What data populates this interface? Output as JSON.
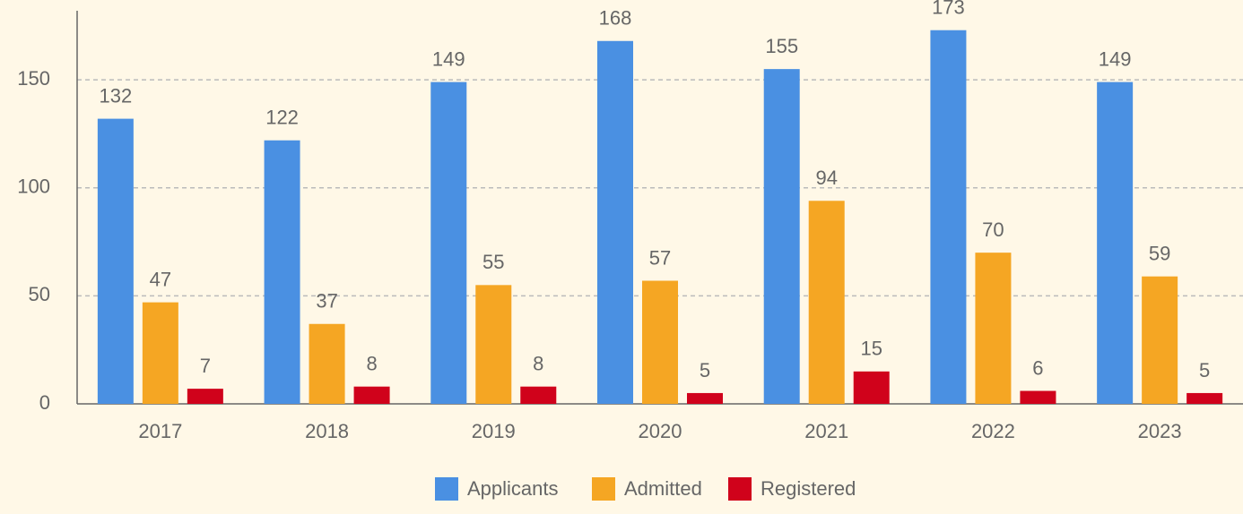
{
  "chart_data": {
    "type": "bar",
    "categories": [
      "2017",
      "2018",
      "2019",
      "2020",
      "2021",
      "2022",
      "2023"
    ],
    "series": [
      {
        "name": "Applicants",
        "color": "#4a90e2",
        "values": [
          132,
          122,
          149,
          168,
          155,
          173,
          149
        ]
      },
      {
        "name": "Admitted",
        "color": "#f5a623",
        "values": [
          47,
          37,
          55,
          57,
          94,
          70,
          59
        ]
      },
      {
        "name": "Registered",
        "color": "#d0021b",
        "values": [
          7,
          8,
          8,
          5,
          15,
          6,
          5
        ]
      }
    ],
    "ylim": [
      0,
      182
    ],
    "yticks": [
      0,
      50,
      100,
      150
    ],
    "grid": true,
    "legend": "bottom"
  }
}
